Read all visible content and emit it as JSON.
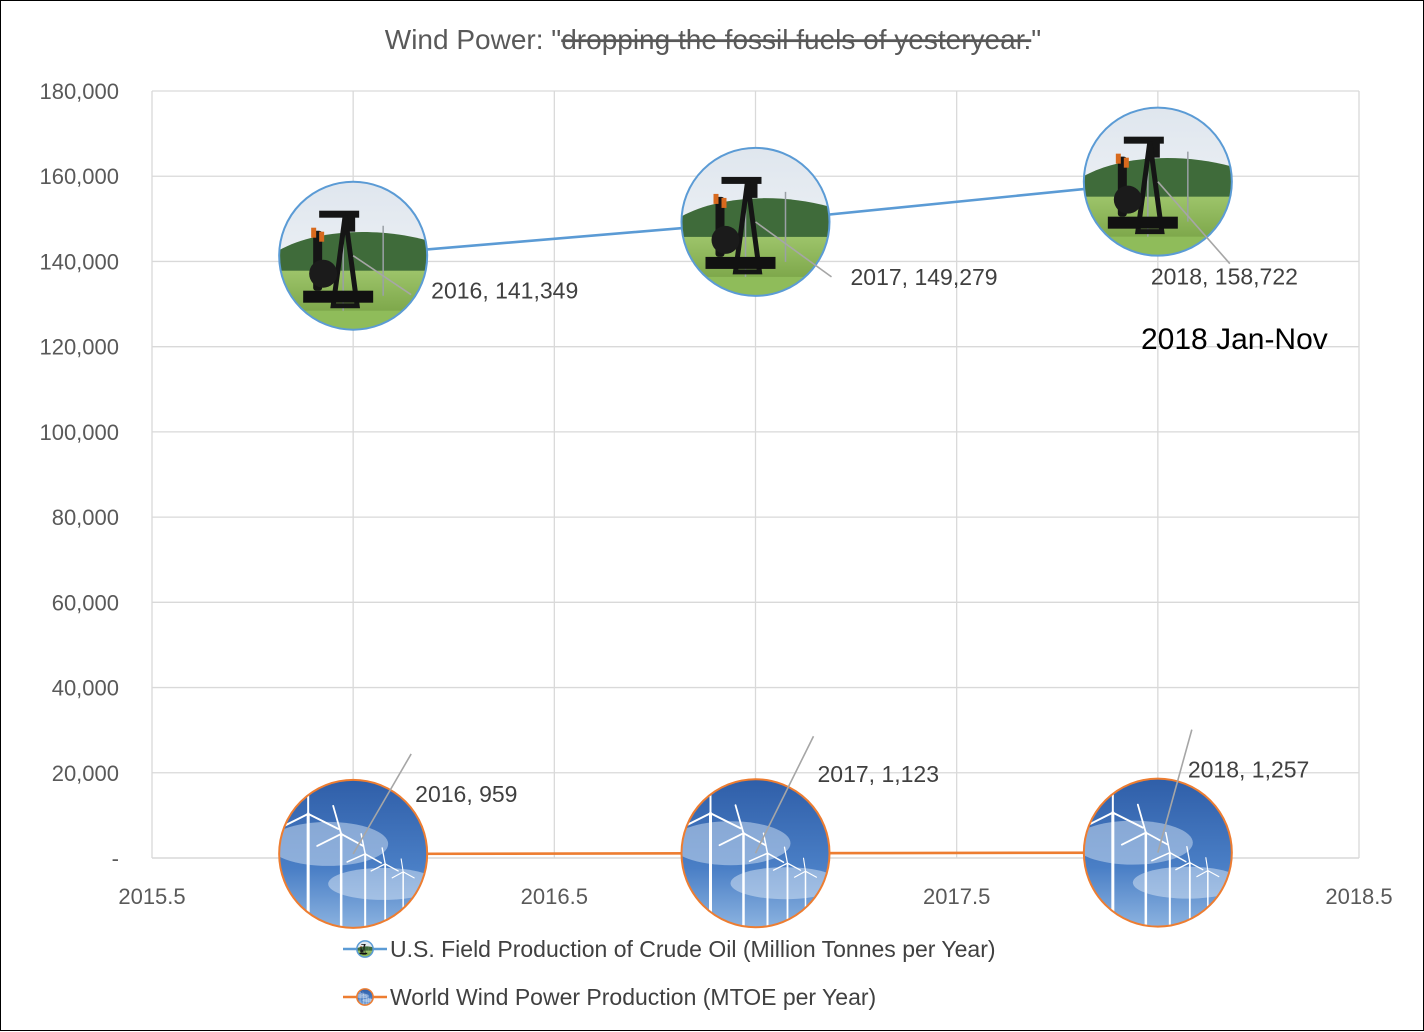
{
  "chart_data": {
    "type": "line",
    "title_prefix": "Wind Power: \"",
    "title_struck": "dropping the fossil fuels of yesteryear.",
    "title_suffix": "\"",
    "xlim": [
      2015.5,
      2018.5
    ],
    "ylim": [
      0,
      180000
    ],
    "x_ticks": [
      "2015.5",
      "2016",
      "2016.5",
      "2017",
      "2017.5",
      "2018",
      "2018.5"
    ],
    "y_ticks": [
      "-",
      "20,000",
      "40,000",
      "60,000",
      "80,000",
      "100,000",
      "120,000",
      "140,000",
      "160,000",
      "180,000"
    ],
    "grid": true,
    "legend_position": "bottom",
    "series": [
      {
        "name": "U.S. Field Production of Crude Oil (Million Tonnes per Year)",
        "color": "#5B9BD5",
        "marker": "oil-pump-photo",
        "x": [
          2016,
          2017,
          2018
        ],
        "y": [
          141349,
          149279,
          158722
        ],
        "labels": [
          "2016,  141,349",
          "2017,  149,279",
          "2018,  158,722"
        ]
      },
      {
        "name": "World Wind Power Production (MTOE per Year)",
        "color": "#ED7D31",
        "marker": "wind-turbine-photo",
        "x": [
          2016,
          2017,
          2018
        ],
        "y": [
          959,
          1123,
          1257
        ],
        "labels": [
          "2016,  959",
          "2017,  1,123",
          "2018,  1,257"
        ]
      }
    ],
    "annotation": "2018 Jan-Nov"
  }
}
